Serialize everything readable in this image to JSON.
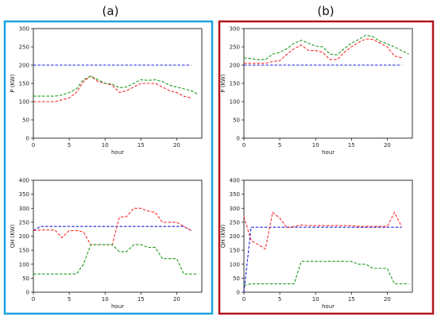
{
  "panel_labels": [
    "(a)",
    "(b)"
  ],
  "colors": {
    "frame_a": "#1aa3e0",
    "frame_b": "#b3141c",
    "blue": "#1f1fe0",
    "red": "#ff2a2a",
    "green": "#1e9a1e"
  },
  "chart_data": [
    {
      "type": "line",
      "panel": "(a)",
      "xlabel": "hour",
      "ylabel": "P (KW)",
      "xlim": [
        0,
        23.5
      ],
      "ylim": [
        0,
        300
      ],
      "xticks": [
        0,
        5,
        10,
        15,
        20
      ],
      "yticks": [
        0,
        50,
        100,
        150,
        200,
        250,
        300
      ],
      "series": [
        {
          "color": "blue",
          "x": [
            0,
            22
          ],
          "y": [
            200,
            200
          ]
        },
        {
          "color": "red",
          "x": [
            0,
            1,
            2,
            3,
            4,
            5,
            6,
            7,
            8,
            9,
            10,
            11,
            12,
            13,
            14,
            15,
            16,
            17,
            18,
            19,
            20,
            21,
            22
          ],
          "y": [
            100,
            100,
            100,
            100,
            105,
            110,
            125,
            155,
            170,
            155,
            150,
            145,
            125,
            130,
            140,
            150,
            150,
            150,
            140,
            130,
            125,
            115,
            110
          ]
        },
        {
          "color": "green",
          "x": [
            0,
            1,
            2,
            3,
            4,
            5,
            6,
            7,
            8,
            9,
            10,
            11,
            12,
            13,
            14,
            15,
            16,
            17,
            18,
            19,
            20,
            21,
            22,
            23
          ],
          "y": [
            115,
            115,
            115,
            115,
            118,
            125,
            135,
            160,
            170,
            160,
            150,
            148,
            138,
            140,
            150,
            160,
            158,
            160,
            155,
            145,
            140,
            135,
            130,
            120
          ]
        }
      ]
    },
    {
      "type": "line",
      "panel": "(b)",
      "xlabel": "hour",
      "ylabel": "P (KW)",
      "xlim": [
        0,
        23.5
      ],
      "ylim": [
        0,
        300
      ],
      "xticks": [
        0,
        5,
        10,
        15,
        20
      ],
      "yticks": [
        0,
        50,
        100,
        150,
        200,
        250,
        300
      ],
      "series": [
        {
          "color": "blue",
          "x": [
            0,
            22
          ],
          "y": [
            200,
            200
          ]
        },
        {
          "color": "red",
          "x": [
            0,
            1,
            2,
            3,
            4,
            5,
            6,
            7,
            8,
            9,
            10,
            11,
            12,
            13,
            14,
            15,
            16,
            17,
            18,
            19,
            20,
            21,
            22
          ],
          "y": [
            205,
            205,
            205,
            205,
            210,
            212,
            230,
            245,
            255,
            240,
            240,
            235,
            215,
            215,
            235,
            250,
            262,
            272,
            270,
            260,
            250,
            225,
            220
          ]
        },
        {
          "color": "green",
          "x": [
            0,
            1,
            2,
            3,
            4,
            5,
            6,
            7,
            8,
            9,
            10,
            11,
            12,
            13,
            14,
            15,
            16,
            17,
            18,
            19,
            20,
            21,
            22,
            23
          ],
          "y": [
            220,
            218,
            215,
            215,
            230,
            235,
            245,
            260,
            268,
            260,
            252,
            250,
            230,
            228,
            245,
            260,
            270,
            282,
            278,
            265,
            258,
            250,
            240,
            230
          ]
        }
      ]
    },
    {
      "type": "line",
      "panel": "(a)",
      "xlabel": "hour",
      "ylabel": "QH (KW)",
      "xlim": [
        0,
        23.5
      ],
      "ylim": [
        0,
        400
      ],
      "xticks": [
        0,
        5,
        10,
        15,
        20
      ],
      "yticks": [
        0,
        50,
        100,
        150,
        200,
        250,
        300,
        350,
        400
      ],
      "series": [
        {
          "color": "blue",
          "x": [
            0,
            1,
            21,
            22
          ],
          "y": [
            220,
            235,
            235,
            220
          ]
        },
        {
          "color": "red",
          "x": [
            0,
            1,
            2,
            3,
            4,
            5,
            6,
            7,
            8,
            9,
            10,
            11,
            12,
            13,
            14,
            15,
            16,
            17,
            18,
            19,
            20,
            21,
            22
          ],
          "y": [
            220,
            222,
            222,
            222,
            195,
            220,
            220,
            215,
            170,
            170,
            170,
            170,
            268,
            270,
            300,
            300,
            290,
            285,
            250,
            250,
            250,
            235,
            220
          ]
        },
        {
          "color": "green",
          "x": [
            0,
            1,
            2,
            3,
            4,
            5,
            6,
            7,
            8,
            9,
            10,
            11,
            12,
            13,
            14,
            15,
            16,
            17,
            18,
            19,
            20,
            21,
            22,
            23
          ],
          "y": [
            65,
            65,
            65,
            65,
            65,
            65,
            65,
            100,
            170,
            170,
            170,
            170,
            145,
            145,
            170,
            170,
            160,
            160,
            120,
            120,
            120,
            65,
            65,
            65
          ]
        }
      ]
    },
    {
      "type": "line",
      "panel": "(b)",
      "xlabel": "hour",
      "ylabel": "QH (KW)",
      "xlim": [
        0,
        23.5
      ],
      "ylim": [
        0,
        400
      ],
      "xticks": [
        0,
        5,
        10,
        15,
        20
      ],
      "yticks": [
        0,
        50,
        100,
        150,
        200,
        250,
        300,
        350,
        400
      ],
      "series": [
        {
          "color": "blue",
          "x": [
            0,
            1,
            22
          ],
          "y": [
            0,
            232,
            232
          ]
        },
        {
          "color": "red",
          "x": [
            0,
            1,
            2,
            3,
            4,
            5,
            6,
            7,
            8,
            9,
            10,
            11,
            12,
            13,
            14,
            15,
            16,
            17,
            18,
            19,
            20,
            21,
            22
          ],
          "y": [
            270,
            185,
            170,
            155,
            285,
            265,
            230,
            235,
            240,
            238,
            238,
            238,
            238,
            238,
            238,
            238,
            235,
            235,
            235,
            235,
            235,
            285,
            235
          ]
        },
        {
          "color": "green",
          "x": [
            0,
            1,
            2,
            3,
            4,
            5,
            6,
            7,
            8,
            9,
            10,
            11,
            12,
            13,
            14,
            15,
            16,
            17,
            18,
            19,
            20,
            21,
            22,
            23
          ],
          "y": [
            25,
            30,
            30,
            30,
            30,
            30,
            30,
            30,
            110,
            110,
            110,
            110,
            110,
            110,
            110,
            110,
            100,
            100,
            85,
            85,
            85,
            30,
            30,
            30
          ]
        }
      ]
    }
  ]
}
